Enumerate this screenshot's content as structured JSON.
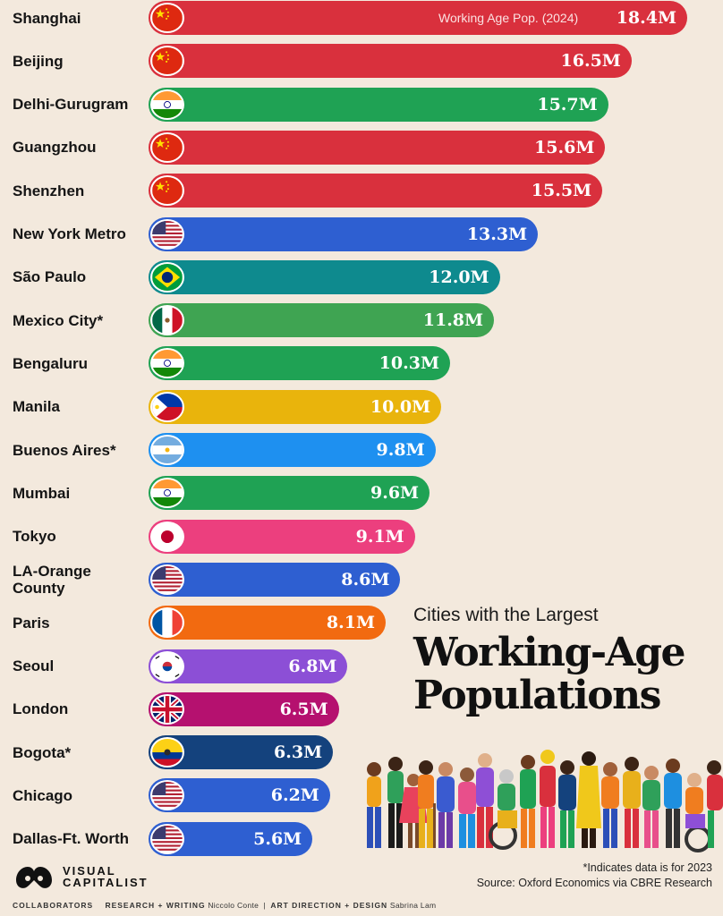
{
  "chart_data": {
    "type": "bar",
    "orientation": "horizontal",
    "title": "Working-Age Populations",
    "subtitle": "Cities with the Largest",
    "legend_label": "Working Age Pop. (2024)",
    "unit_suffix": "M",
    "categories": [
      "Shanghai",
      "Beijing",
      "Delhi-Gurugram",
      "Guangzhou",
      "Shenzhen",
      "New York Metro",
      "São Paulo",
      "Mexico City*",
      "Bengaluru",
      "Manila",
      "Buenos Aires*",
      "Mumbai",
      "Tokyo",
      "LA-Orange\nCounty",
      "Paris",
      "Seoul",
      "London",
      "Bogota*",
      "Chicago",
      "Dallas-Ft. Worth"
    ],
    "values": [
      18.4,
      16.5,
      15.7,
      15.6,
      15.5,
      13.3,
      12.0,
      11.8,
      10.3,
      10.0,
      9.8,
      9.6,
      9.1,
      8.6,
      8.1,
      6.8,
      6.5,
      6.3,
      6.2,
      5.6
    ],
    "value_labels": [
      "18.4M",
      "16.5M",
      "15.7M",
      "15.6M",
      "15.5M",
      "13.3M",
      "12.0M",
      "11.8M",
      "10.3M",
      "10.0M",
      "9.8M",
      "9.6M",
      "9.1M",
      "8.6M",
      "8.1M",
      "6.8M",
      "6.5M",
      "6.3M",
      "6.2M",
      "5.6M"
    ],
    "bar_colors": [
      "#d9303d",
      "#d9303d",
      "#1fa254",
      "#d9303d",
      "#d9303d",
      "#2e5fd1",
      "#0e8a8e",
      "#3fa452",
      "#1fa254",
      "#e9b40c",
      "#1e90f0",
      "#1fa254",
      "#ec3f7e",
      "#2e5fd1",
      "#f26a10",
      "#8c4fd6",
      "#b5116f",
      "#14427d",
      "#2e5fd1",
      "#2e5fd1"
    ],
    "flags": [
      "china",
      "china",
      "india",
      "china",
      "china",
      "usa",
      "brazil",
      "mexico",
      "india",
      "philippines",
      "argentina",
      "india",
      "japan",
      "usa",
      "france",
      "south-korea",
      "uk",
      "colombia",
      "usa",
      "usa"
    ]
  },
  "footnote": "*Indicates data is for 2023",
  "source": "Source: Oxford Economics via CBRE Research",
  "brand": "VISUAL\nCAPITALIST",
  "collaborators": {
    "label": "COLLABORATORS",
    "role1": "RESEARCH + WRITING",
    "name1": "Niccolo Conte",
    "separator": "|",
    "role2": "ART DIRECTION + DESIGN",
    "name2": "Sabrina Lam"
  }
}
